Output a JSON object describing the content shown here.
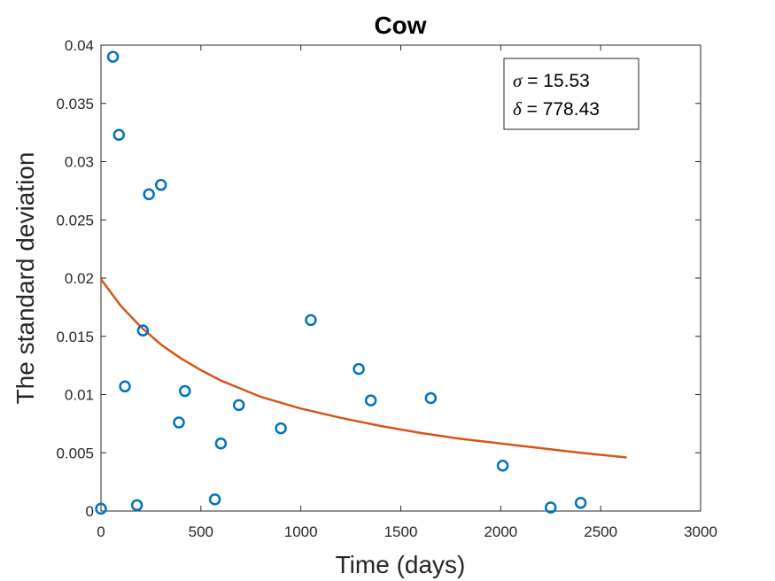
{
  "chart_data": {
    "type": "scatter",
    "title": "Cow",
    "xlabel": "Time (days)",
    "ylabel": "The standard deviation",
    "xlim": [
      0,
      3000
    ],
    "ylim": [
      0,
      0.04
    ],
    "xticks": [
      0,
      500,
      1000,
      1500,
      2000,
      2500,
      3000
    ],
    "xtick_labels": [
      "0",
      "500",
      "1000",
      "1500",
      "2000",
      "2500",
      "3000"
    ],
    "yticks": [
      0,
      0.005,
      0.01,
      0.015,
      0.02,
      0.025,
      0.03,
      0.035,
      0.04
    ],
    "ytick_labels": [
      "0",
      "0.005",
      "0.01",
      "0.015",
      "0.02",
      "0.025",
      "0.03",
      "0.035",
      "0.04"
    ],
    "grid": false,
    "points": {
      "color": "#0072BD",
      "x": [
        0,
        60,
        90,
        120,
        180,
        210,
        240,
        300,
        390,
        420,
        570,
        600,
        690,
        900,
        1050,
        1290,
        1350,
        1650,
        2010,
        2250,
        2400
      ],
      "y": [
        0.0002,
        0.039,
        0.0323,
        0.0107,
        0.0005,
        0.0155,
        0.0272,
        0.028,
        0.0076,
        0.0103,
        0.001,
        0.0058,
        0.0091,
        0.0071,
        0.0164,
        0.0122,
        0.0095,
        0.0097,
        0.0039,
        0.0003,
        0.0007
      ]
    },
    "fit_curve": {
      "color": "#D95319",
      "x": [
        0,
        100,
        200,
        300,
        400,
        500,
        600,
        700,
        800,
        900,
        1000,
        1200,
        1400,
        1600,
        1800,
        2000,
        2200,
        2400,
        2630
      ],
      "y": [
        0.0199,
        0.0176,
        0.0158,
        0.0143,
        0.0131,
        0.0121,
        0.0112,
        0.0105,
        0.0098,
        0.0093,
        0.0088,
        0.008,
        0.0073,
        0.0067,
        0.0062,
        0.0058,
        0.0054,
        0.005,
        0.0046
      ]
    },
    "legend": {
      "placement": "top-right",
      "lines": [
        {
          "symbol": "σ",
          "text": " = 15.53"
        },
        {
          "symbol": "δ",
          "text": " = 778.43"
        }
      ]
    }
  }
}
